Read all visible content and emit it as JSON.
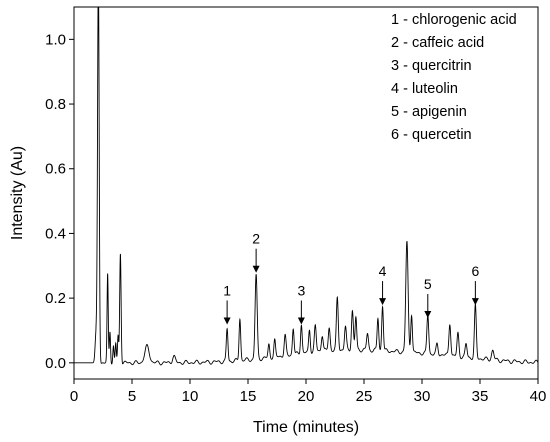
{
  "chart_data": {
    "type": "line",
    "xlabel": "Time (minutes)",
    "ylabel": "Intensity (Au)",
    "xlim": [
      0,
      40
    ],
    "ylim": [
      -0.05,
      1.1
    ],
    "xticks": [
      0,
      5,
      10,
      15,
      20,
      25,
      30,
      35,
      40
    ],
    "yticks": [
      0.0,
      0.2,
      0.4,
      0.6,
      0.8,
      1.0
    ],
    "grid": false,
    "legend_position": "top-right",
    "legend": [
      "1 - chlorogenic acid",
      "2 - caffeic acid",
      "3 - quercitrin",
      "4 - luteolin",
      "5 - apigenin",
      "6 - quercetin"
    ],
    "annotated_peaks": [
      {
        "label": "1",
        "x": 13.2,
        "y": 0.1
      },
      {
        "label": "2",
        "x": 15.7,
        "y": 0.26
      },
      {
        "label": "3",
        "x": 19.6,
        "y": 0.1
      },
      {
        "label": "4",
        "x": 26.6,
        "y": 0.16
      },
      {
        "label": "5",
        "x": 30.5,
        "y": 0.12
      },
      {
        "label": "6",
        "x": 34.6,
        "y": 0.16
      }
    ],
    "series": [
      {
        "baseline": 0.0,
        "peaks": [
          {
            "x": 1.9,
            "h": 0.09,
            "w": 0.08
          },
          {
            "x": 2.1,
            "h": 1.2,
            "w": 0.07
          },
          {
            "x": 2.9,
            "h": 0.27,
            "w": 0.05
          },
          {
            "x": 3.1,
            "h": 0.1,
            "w": 0.05
          },
          {
            "x": 3.4,
            "h": 0.05,
            "w": 0.05
          },
          {
            "x": 3.6,
            "h": 0.06,
            "w": 0.05
          },
          {
            "x": 3.8,
            "h": 0.08,
            "w": 0.05
          },
          {
            "x": 4.0,
            "h": 0.34,
            "w": 0.06
          },
          {
            "x": 6.3,
            "h": 0.05,
            "w": 0.2
          },
          {
            "x": 8.6,
            "h": 0.02,
            "w": 0.12
          },
          {
            "x": 13.2,
            "h": 0.1,
            "w": 0.07
          },
          {
            "x": 14.3,
            "h": 0.13,
            "w": 0.07
          },
          {
            "x": 15.7,
            "h": 0.26,
            "w": 0.09
          },
          {
            "x": 16.8,
            "h": 0.04,
            "w": 0.07
          },
          {
            "x": 17.3,
            "h": 0.05,
            "w": 0.07
          },
          {
            "x": 18.2,
            "h": 0.06,
            "w": 0.08
          },
          {
            "x": 18.9,
            "h": 0.08,
            "w": 0.07
          },
          {
            "x": 19.6,
            "h": 0.09,
            "w": 0.07
          },
          {
            "x": 20.3,
            "h": 0.07,
            "w": 0.07
          },
          {
            "x": 20.8,
            "h": 0.08,
            "w": 0.08
          },
          {
            "x": 21.4,
            "h": 0.05,
            "w": 0.08
          },
          {
            "x": 22.0,
            "h": 0.07,
            "w": 0.08
          },
          {
            "x": 22.7,
            "h": 0.16,
            "w": 0.08
          },
          {
            "x": 23.4,
            "h": 0.07,
            "w": 0.08
          },
          {
            "x": 24.0,
            "h": 0.12,
            "w": 0.08
          },
          {
            "x": 24.3,
            "h": 0.1,
            "w": 0.07
          },
          {
            "x": 25.3,
            "h": 0.05,
            "w": 0.08
          },
          {
            "x": 26.2,
            "h": 0.1,
            "w": 0.07
          },
          {
            "x": 26.6,
            "h": 0.14,
            "w": 0.07
          },
          {
            "x": 28.7,
            "h": 0.34,
            "w": 0.1
          },
          {
            "x": 29.1,
            "h": 0.12,
            "w": 0.07
          },
          {
            "x": 30.5,
            "h": 0.12,
            "w": 0.08
          },
          {
            "x": 31.3,
            "h": 0.03,
            "w": 0.08
          },
          {
            "x": 32.4,
            "h": 0.1,
            "w": 0.08
          },
          {
            "x": 33.1,
            "h": 0.07,
            "w": 0.08
          },
          {
            "x": 33.8,
            "h": 0.04,
            "w": 0.08
          },
          {
            "x": 34.6,
            "h": 0.16,
            "w": 0.08
          },
          {
            "x": 36.1,
            "h": 0.03,
            "w": 0.1
          }
        ],
        "bumps": [
          {
            "x": 23.5,
            "h": 0.04,
            "w": 5.0
          },
          {
            "x": 32.0,
            "h": 0.015,
            "w": 3.5
          }
        ]
      }
    ]
  }
}
